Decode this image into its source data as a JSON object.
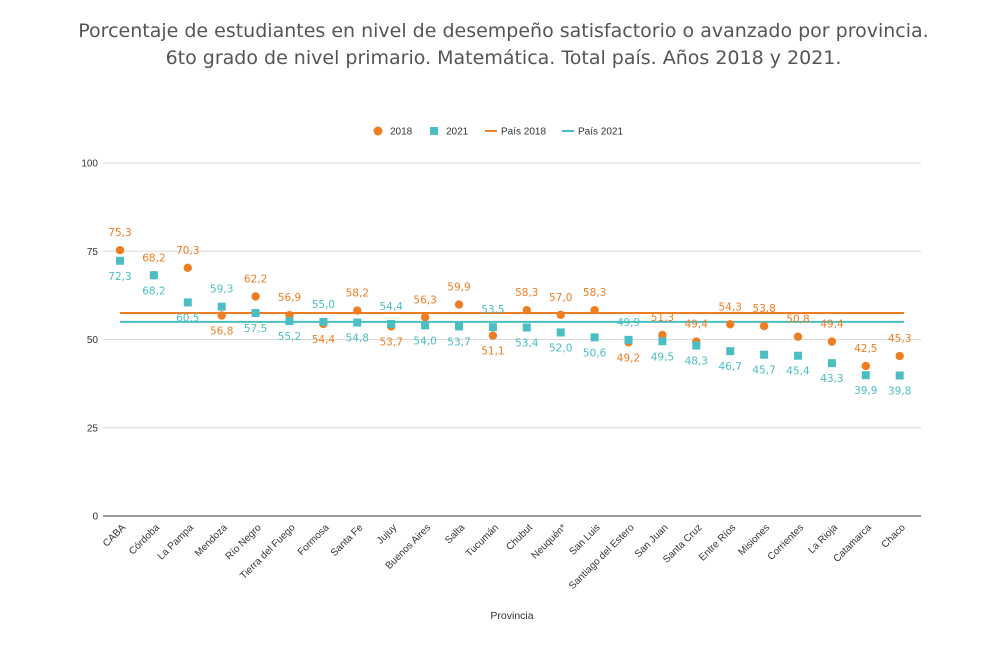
{
  "chart_data": {
    "type": "scatter",
    "title": [
      "Porcentaje de estudiantes en nivel de desempeño satisfactorio o avanzado por provincia.",
      "6to grado de nivel primario. Matemática. Total país. Años 2018 y 2021."
    ],
    "xlabel": "Provincia",
    "ylabel": "",
    "ylim": [
      0,
      100
    ],
    "yticks": [
      0,
      25,
      50,
      75,
      100
    ],
    "grid": true,
    "legend_position": "top",
    "categories": [
      "CABA",
      "Córdoba",
      "La Pampa",
      "Mendoza",
      "Río Negro",
      "Tierra del Fuego",
      "Formosa",
      "Santa Fe",
      "Jujuy",
      "Buenos Aires",
      "Salta",
      "Tucumán",
      "Chubut",
      "Neuquén*",
      "San Luis",
      "Santiago del Estero",
      "San Juan",
      "Santa Cruz",
      "Entre Ríos",
      "Misiones",
      "Corrientes",
      "La Rioja",
      "Catamarca",
      "Chaco"
    ],
    "series": [
      {
        "name": "2018",
        "marker": "circle",
        "color": "#ef7d22",
        "values": [
          75.3,
          68.2,
          70.3,
          56.8,
          62.2,
          56.9,
          54.4,
          58.2,
          53.7,
          56.3,
          59.9,
          51.1,
          58.3,
          57.0,
          58.3,
          49.2,
          51.3,
          49.4,
          54.3,
          53.8,
          50.8,
          49.4,
          42.5,
          45.3
        ],
        "labels": [
          "75,3",
          "68,2",
          "70,3",
          "56,8",
          "62,2",
          "56,9",
          "54,4",
          "58,2",
          "53,7",
          "56,3",
          "59,9",
          "51,1",
          "58,3",
          "57,0",
          "58,3",
          "49,2",
          "51,3",
          "49,4",
          "54,3",
          "53,8",
          "50,8",
          "49,4",
          "42,5",
          "45,3"
        ]
      },
      {
        "name": "2021",
        "marker": "square",
        "color": "#4bbec3",
        "values": [
          72.3,
          68.2,
          60.5,
          59.3,
          57.5,
          55.2,
          55.0,
          54.8,
          54.4,
          54.0,
          53.7,
          53.5,
          53.4,
          52.0,
          50.6,
          49.9,
          49.5,
          48.3,
          46.7,
          45.7,
          45.4,
          43.3,
          39.9,
          39.8
        ],
        "labels": [
          "72,3",
          "68,2",
          "60,5",
          "59,3",
          "57,5",
          "55,2",
          "55,0",
          "54,8",
          "54,4",
          "54,0",
          "53,7",
          "53,5",
          "53,4",
          "52,0",
          "50,6",
          "49,9",
          "49,5",
          "48,3",
          "46,7",
          "45,7",
          "45,4",
          "43,3",
          "39,9",
          "39,8"
        ]
      }
    ],
    "reference_lines": [
      {
        "name": "País 2018",
        "value": 57.5,
        "color": "#ef7d22"
      },
      {
        "name": "País 2021",
        "value": 55.0,
        "color": "#4bbec3"
      }
    ]
  }
}
